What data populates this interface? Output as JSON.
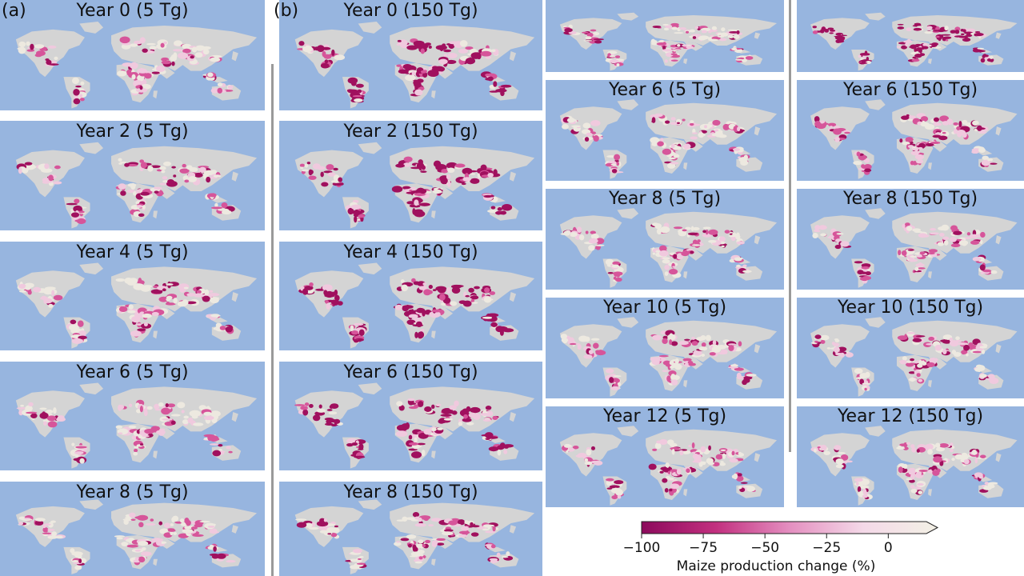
{
  "panel_labels": {
    "a": "(a)",
    "b": "(b)"
  },
  "maps": [
    {
      "title": "Year 0 (5 Tg)",
      "intensity": 0.45
    },
    {
      "title": "Year 2 (5 Tg)",
      "intensity": 0.4
    },
    {
      "title": "Year 4 (5 Tg)",
      "intensity": 0.45
    },
    {
      "title": "Year 6 (5 Tg)",
      "intensity": 0.45
    },
    {
      "title": "Year 8 (5 Tg)",
      "intensity": 0.45
    },
    {
      "title": "Year 0 (150 Tg)",
      "intensity": 0.9
    },
    {
      "title": "Year 2 (150 Tg)",
      "intensity": 0.92
    },
    {
      "title": "Year 4 (150 Tg)",
      "intensity": 0.95
    },
    {
      "title": "Year 6 (150 Tg)",
      "intensity": 0.85
    },
    {
      "title": "Year 8 (150 Tg)",
      "intensity": 0.65
    },
    {
      "title": "",
      "intensity": 0.45
    },
    {
      "title": "Year 6 (5 Tg)",
      "intensity": 0.4
    },
    {
      "title": "Year 8 (5 Tg)",
      "intensity": 0.42
    },
    {
      "title": "Year 10 (5 Tg)",
      "intensity": 0.55
    },
    {
      "title": "Year 12 (5 Tg)",
      "intensity": 0.55
    },
    {
      "title": "",
      "intensity": 0.85
    },
    {
      "title": "Year 6 (150 Tg)",
      "intensity": 0.8
    },
    {
      "title": "Year 8 (150 Tg)",
      "intensity": 0.6
    },
    {
      "title": "Year 10 (150 Tg)",
      "intensity": 0.5
    },
    {
      "title": "Year 12 (150 Tg)",
      "intensity": 0.45
    }
  ],
  "colorbar": {
    "label": "Maize production change (%)",
    "ticks": [
      "−100",
      "−75",
      "−50",
      "−25",
      "0"
    ],
    "tick_values": [
      -100,
      -75,
      -50,
      -25,
      0
    ],
    "range": [
      -100,
      20
    ],
    "colors": [
      "#8c0a5c",
      "#c2307f",
      "#e48fc0",
      "#f4d9e8",
      "#f3f1e6"
    ]
  },
  "colors": {
    "ocean": "#97b5df",
    "land_nodata": "#d4d4d4",
    "crop_neutral": "#ede9e0",
    "crop_low": "#f0c9de",
    "crop_mid": "#d6559a",
    "crop_high": "#a0105e"
  }
}
